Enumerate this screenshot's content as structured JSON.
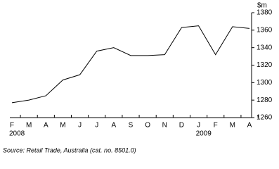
{
  "chart_data": {
    "type": "line",
    "y_unit": "$m",
    "categories": [
      "F",
      "M",
      "A",
      "M",
      "J",
      "J",
      "A",
      "S",
      "O",
      "N",
      "D",
      "J",
      "F",
      "M",
      "A"
    ],
    "years": [
      "2008",
      null,
      null,
      null,
      null,
      null,
      null,
      null,
      null,
      null,
      null,
      "2009",
      null,
      null,
      null
    ],
    "values": [
      1277,
      1280,
      1285,
      1303,
      1309,
      1336,
      1340,
      1331,
      1331,
      1332,
      1363,
      1365,
      1332,
      1364,
      1362
    ],
    "color": "#000000",
    "ylim": [
      1260,
      1380
    ],
    "yticks": [
      1260,
      1280,
      1300,
      1320,
      1340,
      1360,
      1380
    ],
    "source": "Source: Retail Trade, Australia (cat. no. 8501.0)"
  }
}
